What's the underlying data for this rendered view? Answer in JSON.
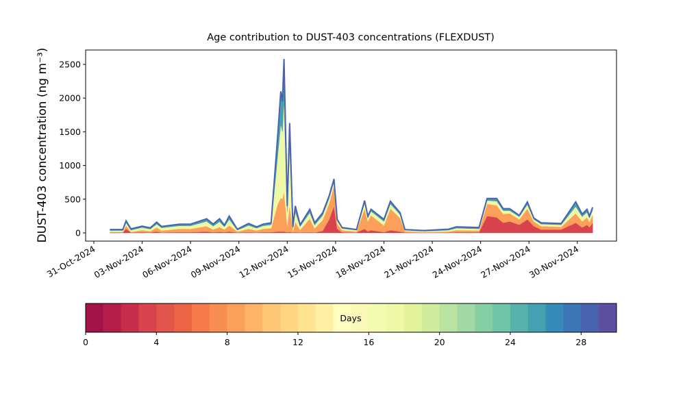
{
  "chart_data": [
    {
      "type": "stacked-area",
      "title": "Age contribution to DUST-403 concentrations (FLEXDUST)",
      "y_label": "DUST-403 concentration (ng m⁻³)",
      "x": [
        1.0,
        1.8,
        2.0,
        2.3,
        3.0,
        3.5,
        3.9,
        4.2,
        5.3,
        6.0,
        7.0,
        7.4,
        7.8,
        8.1,
        8.4,
        8.9,
        9.6,
        10.1,
        10.5,
        11.0,
        11.4,
        11.6,
        11.7,
        11.8,
        12.0,
        12.15,
        12.35,
        12.5,
        12.8,
        13.4,
        13.7,
        14.2,
        14.6,
        14.9,
        15.1,
        15.4,
        16.3,
        16.8,
        17.0,
        17.2,
        18.0,
        18.4,
        19.0,
        19.3,
        20.5,
        22.0,
        22.5,
        23.9,
        24.4,
        25.0,
        25.4,
        25.8,
        26.4,
        26.9,
        27.3,
        27.75,
        29.0,
        29.9,
        30.3,
        30.6,
        30.75,
        30.95
      ],
      "series": [
        {
          "color": "#d8434e",
          "values": [
            5,
            5,
            60,
            5,
            10,
            5,
            20,
            5,
            10,
            10,
            20,
            10,
            15,
            10,
            20,
            5,
            10,
            5,
            10,
            10,
            20,
            20,
            20,
            20,
            10,
            15,
            5,
            10,
            5,
            10,
            5,
            30,
            200,
            400,
            60,
            10,
            5,
            60,
            20,
            40,
            10,
            40,
            20,
            5,
            3,
            5,
            10,
            10,
            250,
            230,
            150,
            170,
            120,
            200,
            100,
            50,
            50,
            150,
            80,
            120,
            80,
            150
          ]
        },
        {
          "color": "#fba05b",
          "values": [
            10,
            10,
            50,
            10,
            30,
            20,
            60,
            30,
            50,
            50,
            80,
            40,
            70,
            40,
            90,
            15,
            50,
            30,
            50,
            60,
            400,
            500,
            480,
            600,
            100,
            400,
            20,
            150,
            40,
            200,
            60,
            160,
            240,
            300,
            80,
            30,
            15,
            300,
            150,
            220,
            100,
            320,
            200,
            20,
            10,
            15,
            30,
            25,
            180,
            180,
            130,
            120,
            80,
            160,
            70,
            50,
            40,
            140,
            90,
            110,
            80,
            120
          ]
        },
        {
          "color": "#eff8a6",
          "values": [
            20,
            20,
            40,
            25,
            40,
            30,
            50,
            40,
            45,
            45,
            70,
            50,
            80,
            40,
            90,
            20,
            50,
            35,
            45,
            50,
            700,
            1100,
            1000,
            1360,
            200,
            850,
            40,
            150,
            50,
            90,
            50,
            70,
            70,
            60,
            40,
            25,
            20,
            80,
            50,
            60,
            60,
            70,
            50,
            15,
            12,
            20,
            30,
            25,
            50,
            60,
            50,
            40,
            40,
            60,
            30,
            30,
            30,
            100,
            70,
            75,
            60,
            70
          ]
        },
        {
          "color": "#45a0b1",
          "values": [
            15,
            15,
            30,
            20,
            20,
            20,
            30,
            20,
            25,
            25,
            40,
            30,
            45,
            25,
            50,
            15,
            30,
            20,
            25,
            30,
            300,
            480,
            450,
            600,
            90,
            365,
            25,
            90,
            25,
            50,
            35,
            40,
            40,
            40,
            20,
            15,
            10,
            40,
            30,
            30,
            30,
            40,
            30,
            10,
            10,
            15,
            20,
            20,
            30,
            40,
            30,
            30,
            20,
            40,
            20,
            20,
            20,
            70,
            40,
            45,
            30,
            40
          ]
        }
      ],
      "line_color": "#4a63ae",
      "xlim": [
        -0.51,
        32.43
      ],
      "xticks": [
        {
          "value": 0,
          "label": "31-Oct-2024"
        },
        {
          "value": 3,
          "label": "03-Nov-2024"
        },
        {
          "value": 6,
          "label": "06-Nov-2024"
        },
        {
          "value": 9,
          "label": "09-Nov-2024"
        },
        {
          "value": 12,
          "label": "12-Nov-2024"
        },
        {
          "value": 15,
          "label": "15-Nov-2024"
        },
        {
          "value": 18,
          "label": "18-Nov-2024"
        },
        {
          "value": 21,
          "label": "21-Nov-2024"
        },
        {
          "value": 24,
          "label": "24-Nov-2024"
        },
        {
          "value": 27,
          "label": "27-Nov-2024"
        },
        {
          "value": 30,
          "label": "30-Nov-2024"
        }
      ],
      "ylim": [
        -122,
        2713
      ],
      "yticks": [
        0,
        500,
        1000,
        1500,
        2000,
        2500
      ]
    },
    {
      "type": "colorbar",
      "label": "Days",
      "colors": [
        "#a2134a",
        "#b51e48",
        "#c82e4b",
        "#d8434e",
        "#e2554a",
        "#ec6445",
        "#f57a4a",
        "#f88d52",
        "#fba05b",
        "#fdb466",
        "#fdc574",
        "#fed583",
        "#fee391",
        "#fff0a6",
        "#fffebe",
        "#faf9b8",
        "#f4faae",
        "#eff8a6",
        "#e2f399",
        "#cfec9d",
        "#b9e3a0",
        "#a0d9a4",
        "#86cfa5",
        "#6dc4a6",
        "#58b2ab",
        "#45a0b1",
        "#378bbb",
        "#3c76b5",
        "#4a63ae",
        "#5e4fa2"
      ],
      "xlim": [
        0,
        30
      ],
      "xticks": [
        0,
        4,
        8,
        12,
        16,
        20,
        24,
        28
      ]
    }
  ]
}
